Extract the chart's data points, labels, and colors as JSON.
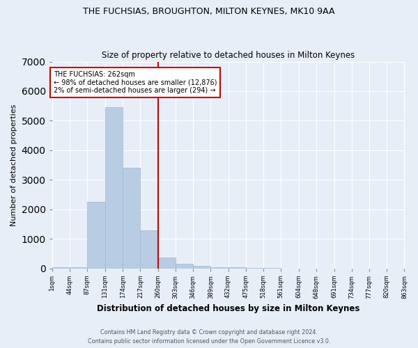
{
  "title1": "THE FUCHSIAS, BROUGHTON, MILTON KEYNES, MK10 9AA",
  "title2": "Size of property relative to detached houses in Milton Keynes",
  "xlabel": "Distribution of detached houses by size in Milton Keynes",
  "ylabel": "Number of detached properties",
  "annotation_title": "THE FUCHSIAS: 262sqm",
  "annotation_line1": "← 98% of detached houses are smaller (12,876)",
  "annotation_line2": "2% of semi-detached houses are larger (294) →",
  "property_line_x": 260,
  "bar_edges": [
    1,
    44,
    87,
    131,
    174,
    217,
    260,
    303,
    346,
    389,
    432,
    475,
    518,
    561,
    604,
    648,
    691,
    734,
    777,
    820,
    863
  ],
  "bar_heights": [
    50,
    50,
    2250,
    5450,
    3400,
    1280,
    380,
    160,
    80,
    50,
    30,
    10,
    5,
    2,
    1,
    1,
    0,
    0,
    0,
    0
  ],
  "bar_color": "#b8cce4",
  "bar_edgecolor": "#a0b8d0",
  "line_color": "#cc0000",
  "annotation_box_edgecolor": "#cc0000",
  "annotation_box_facecolor": "#ffffff",
  "bg_color": "#e8eef8",
  "grid_color": "#ffffff",
  "ylim": [
    0,
    7000
  ],
  "xlim_left": 1,
  "xlim_right": 863,
  "footnote1": "Contains HM Land Registry data © Crown copyright and database right 2024.",
  "footnote2": "Contains public sector information licensed under the Open Government Licence v3.0."
}
